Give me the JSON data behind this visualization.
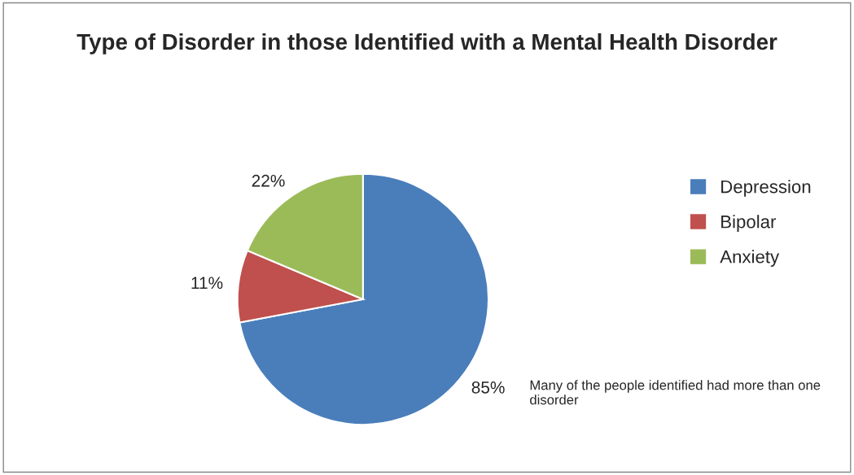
{
  "chart_data": {
    "type": "pie",
    "title": "Type of Disorder in those Identified with a Mental Health Disorder",
    "categories": [
      "Depression",
      "Bipolar",
      "Anxiety"
    ],
    "values": [
      85,
      11,
      22
    ],
    "colors": [
      "#4a7ebb",
      "#c0504d",
      "#9bbb59"
    ],
    "value_labels": [
      "85%",
      "11%",
      "22%"
    ],
    "legend": "right",
    "annotations": [
      "Many of the people identified had more than one disorder"
    ]
  }
}
